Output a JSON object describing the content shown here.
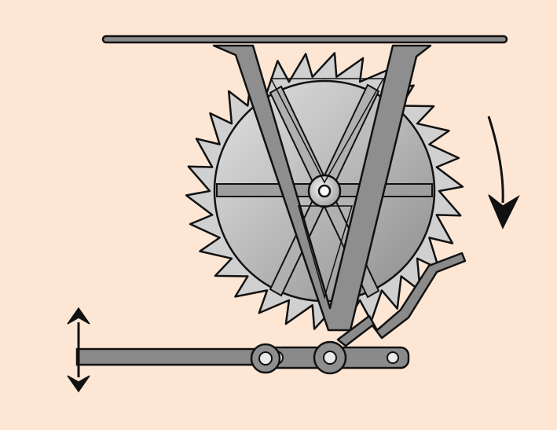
{
  "diagram": {
    "title": "Ratchet wheel with pivoting V-shaped pawl lever mechanism",
    "components": [
      "ceiling-bar",
      "ratchet-wheel",
      "v-lever",
      "pivot-pin",
      "connecting-rod",
      "drive-pawl",
      "lever-arm"
    ],
    "motion": {
      "wheel_rotation": "clockwise",
      "lever_motion": "up-down"
    },
    "colors": {
      "background": "#fde6d4",
      "metal_fill": "#8a8a8a",
      "metal_dark": "#6e6e6e",
      "metal_light": "#dcdcdc",
      "wheel_light": "#e2e2e2",
      "wheel_mid": "#b9b9b9",
      "wheel_dark": "#8c8c8c",
      "outline": "#111111",
      "arrow": "#111111"
    }
  }
}
